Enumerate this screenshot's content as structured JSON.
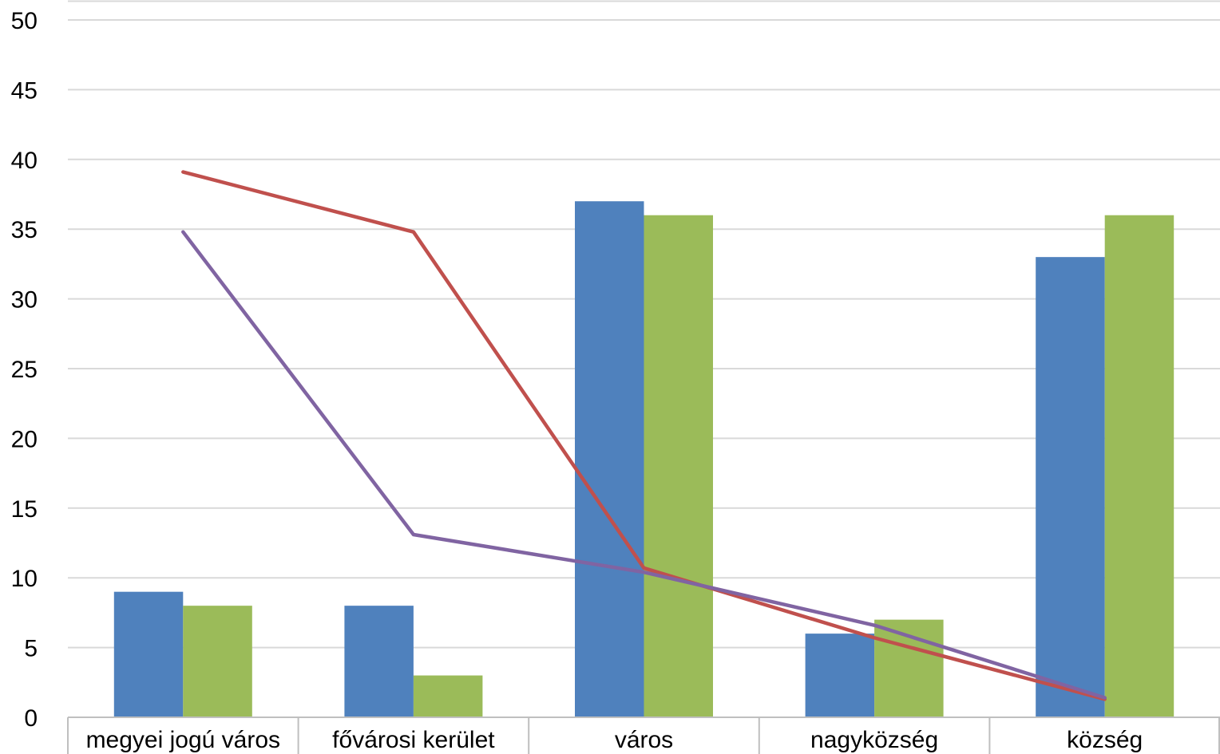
{
  "chart_data": {
    "type": "bar",
    "categories": [
      "megyei jogú város",
      "fővárosi kerület",
      "város",
      "nagyközség",
      "község"
    ],
    "ylim": [
      0,
      50
    ],
    "yticks": [
      0,
      5,
      10,
      15,
      20,
      25,
      30,
      35,
      40,
      45,
      50
    ],
    "grid": true,
    "legend": "none",
    "series": [
      {
        "type": "bar",
        "color": "#4F81BD",
        "values": [
          9,
          8,
          37,
          6,
          33
        ]
      },
      {
        "type": "bar",
        "color": "#9BBB59",
        "values": [
          8,
          3,
          36,
          7,
          36
        ]
      },
      {
        "type": "line",
        "color": "#C0504D",
        "values": [
          39.1,
          34.8,
          10.7,
          5.7,
          1.3
        ]
      },
      {
        "type": "line",
        "color": "#8064A2",
        "values": [
          34.8,
          13.1,
          10.4,
          6.6,
          1.4
        ]
      }
    ],
    "title": "",
    "xlabel": "",
    "ylabel": ""
  }
}
